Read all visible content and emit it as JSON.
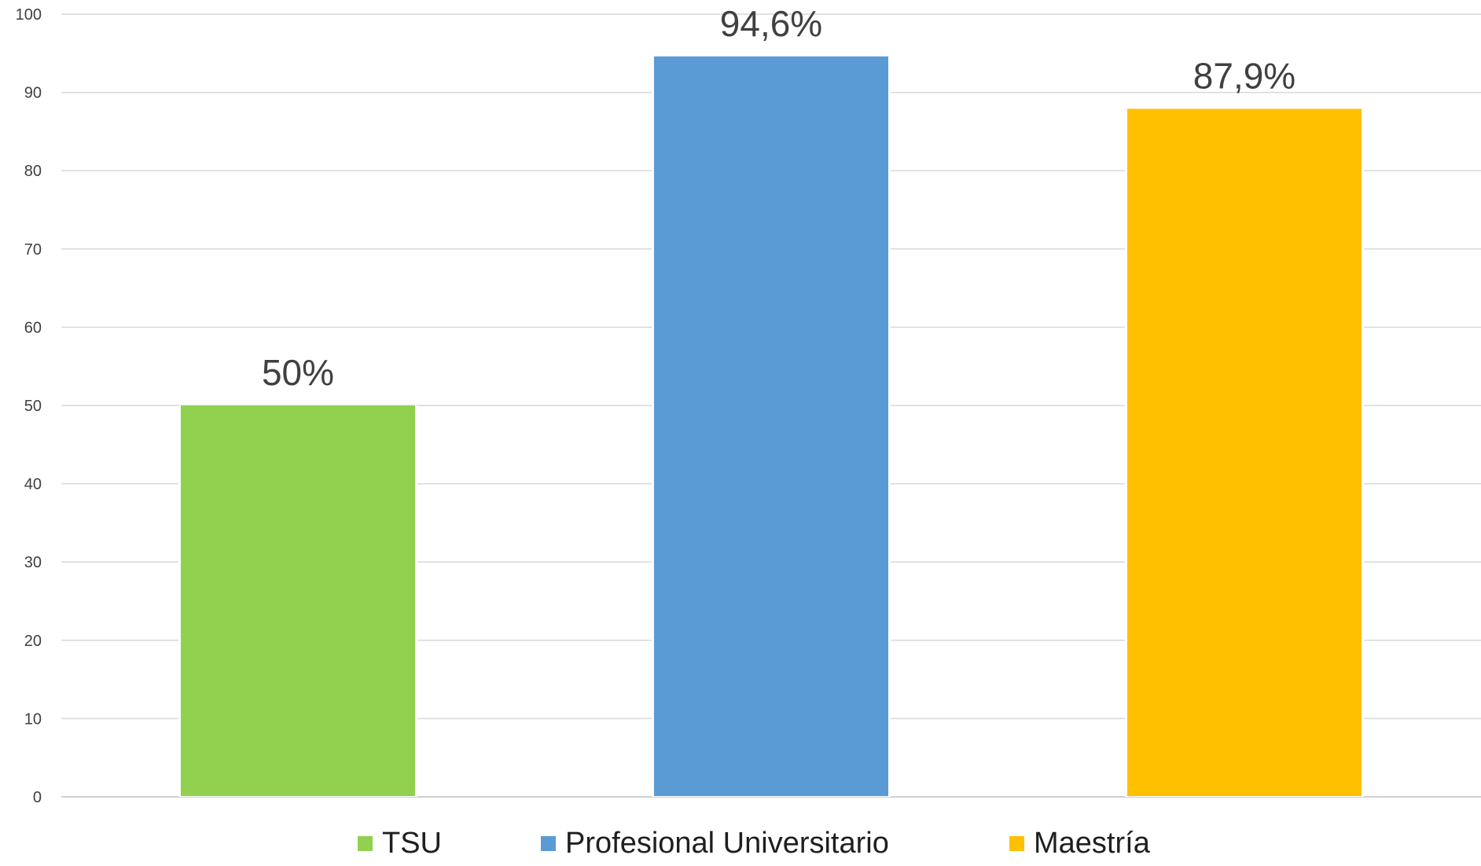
{
  "chart_data": {
    "type": "bar",
    "title": "",
    "xlabel": "",
    "ylabel": "",
    "ylim": [
      0,
      100
    ],
    "yticks": [
      0,
      10,
      20,
      30,
      40,
      50,
      60,
      70,
      80,
      90,
      100
    ],
    "grid": true,
    "legend_position": "bottom",
    "categories": [
      "TSU",
      "Profesional Universitario",
      "Maestría"
    ],
    "values": [
      50,
      94.6,
      87.9
    ],
    "data_labels": [
      "50%",
      "94,6%",
      "87,9%"
    ],
    "colors": [
      "#92d050",
      "#5b9bd5",
      "#ffc000"
    ],
    "legend": [
      "TSU",
      "Profesional Universitario",
      "Maestría"
    ]
  }
}
